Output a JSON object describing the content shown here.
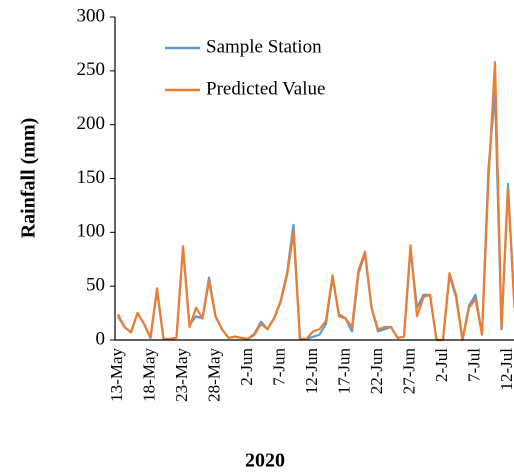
{
  "chart_data": {
    "type": "line",
    "x_label": "2020",
    "y_label": "Rainfall (mm)",
    "categories": [
      "13-May",
      null,
      null,
      null,
      null,
      "18-May",
      null,
      null,
      null,
      null,
      "23-May",
      null,
      null,
      null,
      null,
      "28-May",
      null,
      null,
      null,
      null,
      "2-Jun",
      null,
      null,
      null,
      null,
      "7-Jun",
      null,
      null,
      null,
      null,
      "12-Jun",
      null,
      null,
      null,
      null,
      "17-Jun",
      null,
      null,
      null,
      null,
      "22-Jun",
      null,
      null,
      null,
      null,
      "27-Jun",
      null,
      null,
      null,
      null,
      "2-Jul",
      null,
      null,
      null,
      null,
      "7-Jul",
      null,
      null,
      null,
      null,
      "12-Jul",
      null
    ],
    "series": [
      {
        "name": "Sample Station",
        "color": "#5b9bd5",
        "values": [
          22,
          12,
          7,
          25,
          15,
          2,
          46,
          1,
          1,
          2,
          86,
          14,
          22,
          20,
          58,
          22,
          10,
          2,
          3,
          2,
          1,
          6,
          17,
          10,
          20,
          36,
          62,
          107,
          1,
          1,
          3,
          5,
          15,
          58,
          24,
          20,
          8,
          62,
          80,
          30,
          8,
          10,
          12,
          2,
          3,
          84,
          30,
          42,
          42,
          0,
          0,
          60,
          40,
          0,
          32,
          42,
          5,
          160,
          230,
          10,
          145,
          30
        ]
      },
      {
        "name": "Predicted Value",
        "color": "#ed7d31",
        "values": [
          24,
          12,
          7,
          25,
          15,
          2,
          48,
          1,
          1,
          2,
          87,
          12,
          30,
          20,
          55,
          22,
          10,
          2,
          3,
          2,
          1,
          5,
          15,
          10,
          20,
          35,
          60,
          100,
          1,
          1,
          8,
          10,
          18,
          60,
          22,
          20,
          12,
          65,
          82,
          30,
          10,
          12,
          12,
          2,
          3,
          88,
          22,
          40,
          42,
          0,
          0,
          62,
          42,
          0,
          30,
          38,
          5,
          150,
          258,
          12,
          140,
          30
        ]
      }
    ],
    "ylim": [
      0,
      300
    ],
    "yticks": [
      0,
      50,
      100,
      150,
      200,
      250,
      300
    ],
    "legend": "top-left"
  }
}
